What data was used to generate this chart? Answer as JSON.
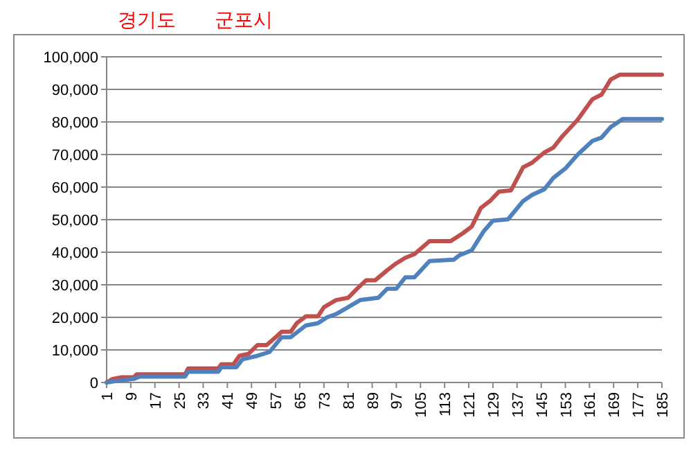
{
  "chart_data": {
    "type": "line",
    "annotations": [
      "경기도",
      "군포시"
    ],
    "xlim": [
      1,
      185
    ],
    "xticks": [
      1,
      9,
      17,
      25,
      33,
      41,
      49,
      57,
      65,
      73,
      81,
      89,
      97,
      105,
      113,
      121,
      129,
      137,
      145,
      153,
      161,
      169,
      177,
      185
    ],
    "ylim": [
      0,
      100000
    ],
    "yticks": [
      {
        "value": 0,
        "label": "0"
      },
      {
        "value": 10000,
        "label": "10,000"
      },
      {
        "value": 20000,
        "label": "20,000"
      },
      {
        "value": 30000,
        "label": "30,000"
      },
      {
        "value": 40000,
        "label": "40,000"
      },
      {
        "value": 50000,
        "label": "50,000"
      },
      {
        "value": 60000,
        "label": "60,000"
      },
      {
        "value": 70000,
        "label": "70,000"
      },
      {
        "value": 80000,
        "label": "80,000"
      },
      {
        "value": 90000,
        "label": "90,000"
      },
      {
        "value": 100000,
        "label": "100,000"
      }
    ],
    "grid": "y",
    "marker": "none",
    "line_style": "solid",
    "series": [
      {
        "color": "#c0504d",
        "x": [
          1,
          3,
          6,
          10,
          11,
          27,
          28,
          38,
          39,
          43,
          45,
          48,
          51,
          54,
          57,
          59,
          62,
          64,
          67,
          71,
          73,
          77,
          81,
          84,
          87,
          90,
          94,
          97,
          100,
          103,
          108,
          115,
          119,
          122,
          125,
          128,
          131,
          135,
          139,
          142,
          146,
          149,
          152,
          157,
          162,
          165,
          168,
          171,
          185
        ],
        "values": [
          0,
          1100,
          1600,
          1600,
          2500,
          2500,
          4300,
          4300,
          5600,
          5600,
          8200,
          8800,
          11500,
          11500,
          13900,
          15600,
          15600,
          18200,
          20300,
          20300,
          23100,
          25300,
          26000,
          28800,
          31400,
          31400,
          34500,
          36600,
          38300,
          39400,
          43400,
          43400,
          45800,
          47900,
          53600,
          55700,
          58600,
          59000,
          66100,
          67500,
          70600,
          72100,
          75600,
          80600,
          87000,
          88400,
          93000,
          94500,
          94500
        ]
      },
      {
        "color": "#4f81bd",
        "x": [
          1,
          4,
          10,
          12,
          27,
          28,
          38,
          39,
          44,
          46,
          51,
          55,
          59,
          62,
          67,
          71,
          74,
          77,
          81,
          85,
          91,
          94,
          97,
          100,
          103,
          108,
          116,
          118,
          122,
          126,
          129,
          134,
          139,
          142,
          146,
          149,
          153,
          157,
          162,
          165,
          168,
          172,
          185
        ],
        "values": [
          0,
          400,
          1100,
          1800,
          1800,
          3300,
          3300,
          4700,
          4700,
          7100,
          8200,
          9400,
          13900,
          13900,
          17500,
          18200,
          20000,
          21000,
          23100,
          25300,
          26000,
          28800,
          28800,
          32300,
          32300,
          37300,
          37700,
          39100,
          40600,
          46500,
          49700,
          50100,
          55700,
          57600,
          59300,
          62800,
          65700,
          69900,
          74200,
          75200,
          78400,
          80900,
          80900
        ]
      }
    ]
  }
}
